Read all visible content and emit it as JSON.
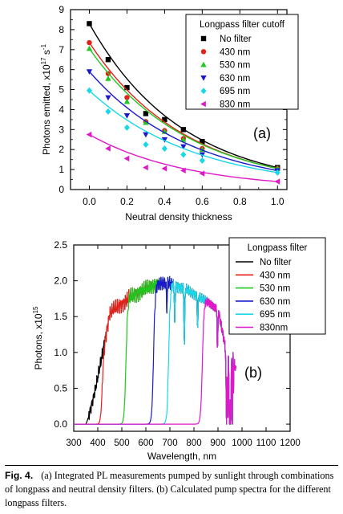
{
  "chart_data": [
    {
      "panel_label": "(a)",
      "type": "scatter",
      "xlabel": "Neutral density thickness",
      "ylabel": "Photons emitted, x10",
      "ylabel_exp": "17",
      "ylabel_unit": " s",
      "ylabel_unit_exp": "-1",
      "xlim": [
        -0.1,
        1.05
      ],
      "ylim": [
        0,
        9
      ],
      "xticks": [
        "0.0",
        "0.2",
        "0.4",
        "0.6",
        "0.8",
        "1.0"
      ],
      "yticks": [
        "0",
        "1",
        "2",
        "3",
        "4",
        "5",
        "6",
        "7",
        "8",
        "9"
      ],
      "legend_title": "Longpass filter cutoff",
      "legend_position": "top-right",
      "x": [
        0.0,
        0.1,
        0.2,
        0.3,
        0.4,
        0.5,
        0.6,
        1.0
      ],
      "series": [
        {
          "name": "No filter",
          "color": "#000000",
          "marker": "square",
          "values": [
            8.3,
            6.5,
            5.1,
            3.8,
            3.5,
            3.0,
            2.4,
            1.1
          ]
        },
        {
          "name": "430 nm",
          "color": "#e8201a",
          "marker": "circle",
          "values": [
            7.35,
            5.8,
            4.6,
            3.4,
            2.95,
            2.55,
            2.05,
            1.05
          ]
        },
        {
          "name": "530 nm",
          "color": "#1ec81e",
          "marker": "triangle-up",
          "values": [
            7.05,
            5.55,
            4.4,
            3.35,
            2.9,
            2.5,
            2.0,
            1.05
          ]
        },
        {
          "name": "630 nm",
          "color": "#1a1acc",
          "marker": "triangle-down",
          "values": [
            5.9,
            4.6,
            3.7,
            2.75,
            2.5,
            2.15,
            1.75,
            0.95
          ]
        },
        {
          "name": "695 nm",
          "color": "#18d8e8",
          "marker": "diamond",
          "values": [
            4.95,
            3.9,
            3.1,
            2.25,
            2.05,
            1.75,
            1.45,
            0.85
          ]
        },
        {
          "name": "830 nm",
          "color": "#e018c8",
          "marker": "triangle-left",
          "values": [
            2.75,
            2.05,
            1.55,
            1.1,
            1.05,
            0.95,
            0.8,
            0.4
          ]
        }
      ]
    },
    {
      "panel_label": "(b)",
      "type": "line",
      "xlabel": "Wavelength, nm",
      "ylabel": "Photons, x10",
      "ylabel_exp": "15",
      "xlim": [
        300,
        1200
      ],
      "ylim": [
        -0.1,
        2.5
      ],
      "xticks": [
        "300",
        "400",
        "500",
        "600",
        "700",
        "800",
        "900",
        "1000",
        "1100",
        "1200"
      ],
      "yticks": [
        "0.0",
        "0.5",
        "1.0",
        "1.5",
        "2.0",
        "2.5"
      ],
      "legend_title": "Longpass filter",
      "legend_position": "top-right",
      "series": [
        {
          "name": "No filter",
          "color": "#000000",
          "cutoff_nm": 300
        },
        {
          "name": "430 nm",
          "color": "#e8201a",
          "cutoff_nm": 418
        },
        {
          "name": "530 nm",
          "color": "#1ec81e",
          "cutoff_nm": 517
        },
        {
          "name": "630 nm",
          "color": "#1a1acc",
          "cutoff_nm": 632
        },
        {
          "name": "695 nm",
          "color": "#18d8e8",
          "cutoff_nm": 695
        },
        {
          "name": "830nm",
          "color": "#e018c8",
          "cutoff_nm": 835
        }
      ]
    }
  ],
  "caption": {
    "figure": "Fig. 4.",
    "text": "(a) Integrated PL measurements pumped by sunlight through combinations of longpass and neutral density filters. (b) Calculated pump spectra for the different longpass filters."
  }
}
